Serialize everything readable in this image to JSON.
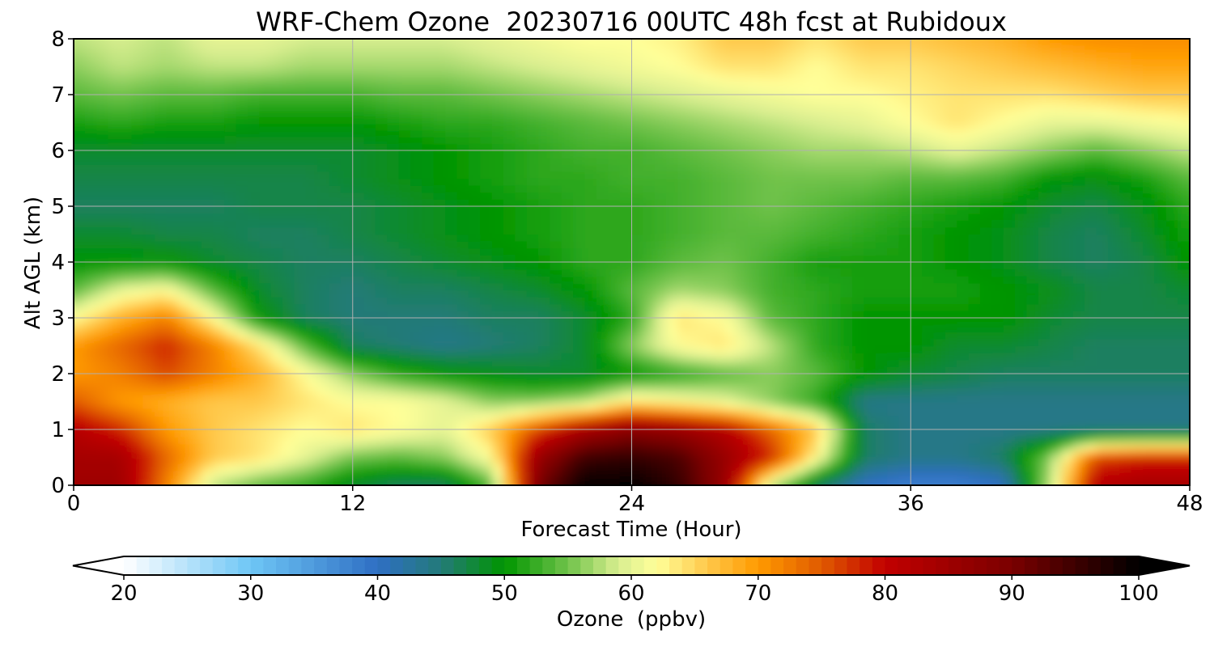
{
  "chart_data": {
    "type": "heatmap",
    "title": "WRF-Chem Ozone  20230716 00UTC 48h fcst at Rubidoux",
    "xlabel": "Forecast Time (Hour)",
    "ylabel": "Alt AGL (km)",
    "x_ticks": [
      0,
      12,
      24,
      36,
      48
    ],
    "y_ticks": [
      0,
      1,
      2,
      3,
      4,
      5,
      6,
      7,
      8
    ],
    "xlim": [
      0,
      48
    ],
    "ylim": [
      0,
      8
    ],
    "grid": true,
    "colorbar": {
      "label": "Ozone  (ppbv)",
      "ticks": [
        20,
        30,
        40,
        50,
        60,
        70,
        80,
        90,
        100
      ],
      "range": [
        20,
        100
      ],
      "extend": "both",
      "under_color": "#ffffff",
      "over_color": "#000000",
      "stops": [
        {
          "v": 20,
          "c": "#ffffff"
        },
        {
          "v": 30,
          "c": "#6ec6f5"
        },
        {
          "v": 40,
          "c": "#2f6fc4"
        },
        {
          "v": 45,
          "c": "#237a78"
        },
        {
          "v": 50,
          "c": "#009500"
        },
        {
          "v": 55,
          "c": "#70c24a"
        },
        {
          "v": 59,
          "c": "#d9ee90"
        },
        {
          "v": 62,
          "c": "#ffff99"
        },
        {
          "v": 66,
          "c": "#ffc84a"
        },
        {
          "v": 70,
          "c": "#ff9a00"
        },
        {
          "v": 75,
          "c": "#e05a00"
        },
        {
          "v": 80,
          "c": "#c20000"
        },
        {
          "v": 90,
          "c": "#7a0000"
        },
        {
          "v": 100,
          "c": "#000000"
        }
      ]
    },
    "x": [
      0,
      2,
      4,
      6,
      8,
      10,
      12,
      14,
      16,
      18,
      20,
      22,
      24,
      26,
      28,
      30,
      32,
      34,
      36,
      38,
      40,
      42,
      44,
      46,
      48
    ],
    "y": [
      0,
      0.5,
      1,
      1.5,
      2,
      2.5,
      3,
      3.5,
      4,
      4.5,
      5,
      5.5,
      6,
      6.5,
      7,
      7.5,
      8
    ],
    "z": [
      [
        85,
        85,
        72,
        58,
        54,
        52,
        48,
        46,
        46,
        54,
        90,
        100,
        100,
        96,
        86,
        58,
        46,
        40,
        38,
        38,
        40,
        58,
        82,
        84,
        84
      ],
      [
        84,
        84,
        74,
        66,
        64,
        60,
        55,
        54,
        56,
        62,
        86,
        95,
        96,
        94,
        86,
        78,
        62,
        46,
        44,
        44,
        46,
        56,
        76,
        78,
        78
      ],
      [
        82,
        78,
        70,
        66,
        64,
        62,
        64,
        62,
        60,
        66,
        76,
        84,
        88,
        86,
        82,
        74,
        66,
        46,
        44,
        44,
        44,
        44,
        44,
        44,
        44
      ],
      [
        75,
        70,
        68,
        66,
        66,
        64,
        62,
        62,
        60,
        56,
        56,
        58,
        64,
        62,
        60,
        56,
        52,
        44,
        44,
        44,
        44,
        44,
        44,
        44,
        44
      ],
      [
        70,
        72,
        76,
        72,
        68,
        62,
        56,
        52,
        50,
        49,
        48,
        48,
        50,
        52,
        54,
        56,
        54,
        50,
        48,
        47,
        46,
        46,
        46,
        46,
        46
      ],
      [
        70,
        74,
        78,
        72,
        64,
        54,
        46,
        45,
        44,
        45,
        46,
        48,
        56,
        62,
        64,
        58,
        52,
        50,
        50,
        48,
        48,
        47,
        46,
        46,
        46
      ],
      [
        62,
        68,
        72,
        62,
        50,
        46,
        45,
        45,
        45,
        46,
        46,
        48,
        52,
        64,
        62,
        54,
        52,
        50,
        50,
        50,
        50,
        48,
        47,
        47,
        47
      ],
      [
        54,
        60,
        62,
        54,
        48,
        46,
        45,
        46,
        46,
        47,
        48,
        50,
        54,
        57,
        56,
        53,
        52,
        51,
        51,
        51,
        50,
        49,
        47,
        47,
        48
      ],
      [
        50,
        50,
        50,
        48,
        47,
        46,
        46,
        47,
        48,
        49,
        50,
        52,
        52,
        54,
        55,
        53,
        51,
        51,
        51,
        50,
        49,
        47,
        46,
        47,
        50
      ],
      [
        48,
        48,
        47,
        47,
        46,
        46,
        47,
        48,
        49,
        50,
        51,
        52,
        52,
        53,
        54,
        54,
        53,
        52,
        51,
        50,
        49,
        47,
        46,
        48,
        51
      ],
      [
        46,
        46,
        46,
        46,
        47,
        47,
        47,
        48,
        49,
        50,
        51,
        52,
        52,
        53,
        54,
        55,
        54,
        53,
        52,
        51,
        50,
        48,
        47,
        49,
        52
      ],
      [
        47,
        47,
        47,
        47,
        47,
        47,
        48,
        49,
        50,
        51,
        52,
        52,
        53,
        53,
        54,
        55,
        55,
        55,
        54,
        54,
        53,
        50,
        49,
        51,
        54
      ],
      [
        48,
        48,
        48,
        48,
        48,
        48,
        48,
        49,
        50,
        51,
        52,
        53,
        53,
        54,
        55,
        56,
        57,
        57,
        58,
        60,
        58,
        56,
        54,
        56,
        58
      ],
      [
        51,
        52,
        51,
        51,
        50,
        50,
        50,
        51,
        52,
        52,
        53,
        54,
        55,
        56,
        57,
        58,
        59,
        60,
        62,
        64,
        62,
        60,
        60,
        61,
        62
      ],
      [
        54,
        55,
        54,
        54,
        53,
        53,
        53,
        54,
        54,
        55,
        56,
        57,
        58,
        59,
        60,
        61,
        62,
        62,
        63,
        64,
        64,
        64,
        65,
        66,
        66
      ],
      [
        56,
        58,
        57,
        58,
        58,
        57,
        57,
        57,
        57,
        58,
        59,
        60,
        61,
        62,
        64,
        64,
        62,
        64,
        64,
        65,
        66,
        67,
        68,
        69,
        69
      ],
      [
        58,
        59,
        58,
        60,
        60,
        59,
        59,
        59,
        59,
        60,
        61,
        62,
        62,
        63,
        66,
        66,
        64,
        66,
        66,
        67,
        68,
        70,
        71,
        71,
        71
      ]
    ]
  }
}
